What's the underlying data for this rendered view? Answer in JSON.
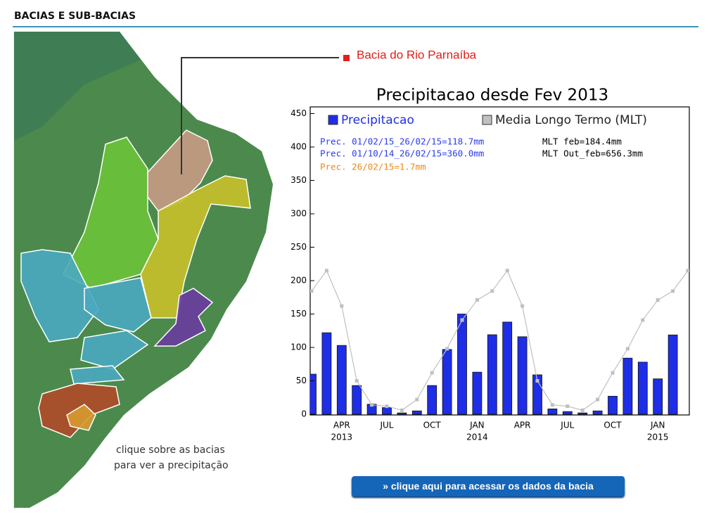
{
  "header": {
    "title": "BACIAS E SUB-BACIAS"
  },
  "map": {
    "selected_basin": "Bacia do Rio Parnaíba",
    "caption": [
      "clique sobre as bacias",
      "para ver a precipitação"
    ]
  },
  "chart_data": {
    "type": "bar",
    "title": "Precipitacao desde Fev 2013",
    "categories": [
      null,
      null,
      "APR",
      null,
      null,
      "JUL",
      null,
      null,
      "OCT",
      null,
      null,
      "JAN",
      null,
      null,
      "APR",
      null,
      null,
      "JUL",
      null,
      null,
      "OCT",
      null,
      null,
      "JAN",
      null,
      null
    ],
    "years": [
      null,
      null,
      "2013",
      null,
      null,
      null,
      null,
      null,
      null,
      null,
      null,
      "2014",
      null,
      null,
      null,
      null,
      null,
      null,
      null,
      null,
      null,
      null,
      null,
      "2015",
      null,
      null
    ],
    "series": [
      {
        "name": "Precipitacao",
        "color": "#1e2ee6",
        "values": [
          60,
          122,
          103,
          43,
          15,
          10,
          2,
          5,
          43,
          97,
          150,
          63,
          119,
          138,
          116,
          59,
          8,
          4,
          2,
          5,
          27,
          84,
          78,
          53,
          118.7,
          null
        ]
      },
      {
        "name": "Media Longo Termo (MLT)",
        "color": "#c0c0c0",
        "type": "line",
        "values": [
          184.4,
          215,
          162,
          50,
          14,
          12,
          6,
          22,
          62,
          98,
          141,
          171,
          184.4,
          215,
          162,
          50,
          14,
          12,
          6,
          22,
          62,
          98,
          141,
          171,
          184.4,
          215
        ]
      }
    ],
    "annotations": [
      {
        "text": "Prec. 01/02/15_26/02/15=118.7mm",
        "color": "#2a3cf0"
      },
      {
        "text": "Prec. 01/10/14_26/02/15=360.0mm",
        "color": "#2a3cf0"
      },
      {
        "text": "Prec. 26/02/15=1.7mm",
        "color": "#e88a1a"
      },
      {
        "text": "MLT feb=184.4mm",
        "color": "#000000"
      },
      {
        "text": "MLT Out_feb=656.3mm",
        "color": "#000000"
      }
    ],
    "ylim": [
      0,
      460
    ],
    "yticks": [
      0,
      50,
      100,
      150,
      200,
      250,
      300,
      350,
      400,
      450
    ]
  },
  "button": {
    "label": "» clique aqui para acessar os dados da bacia"
  }
}
